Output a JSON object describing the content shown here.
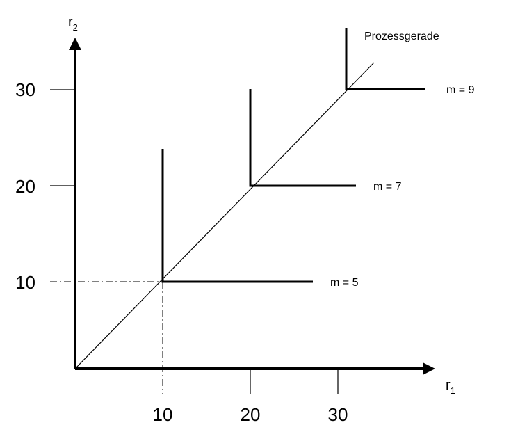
{
  "axes": {
    "x": {
      "label": "r",
      "subscript": "1",
      "ticks": [
        10,
        20,
        30
      ]
    },
    "y": {
      "label": "r",
      "subscript": "2",
      "ticks": [
        10,
        20,
        30
      ]
    }
  },
  "process_line": {
    "label": "Prozessgerade"
  },
  "isoquants": [
    {
      "label": "m = 5",
      "corner": [
        10,
        10
      ]
    },
    {
      "label": "m = 7",
      "corner": [
        20,
        20
      ]
    },
    {
      "label": "m = 9",
      "corner": [
        30,
        30
      ]
    }
  ],
  "colors": {
    "ink": "#000000",
    "background": "#ffffff"
  }
}
